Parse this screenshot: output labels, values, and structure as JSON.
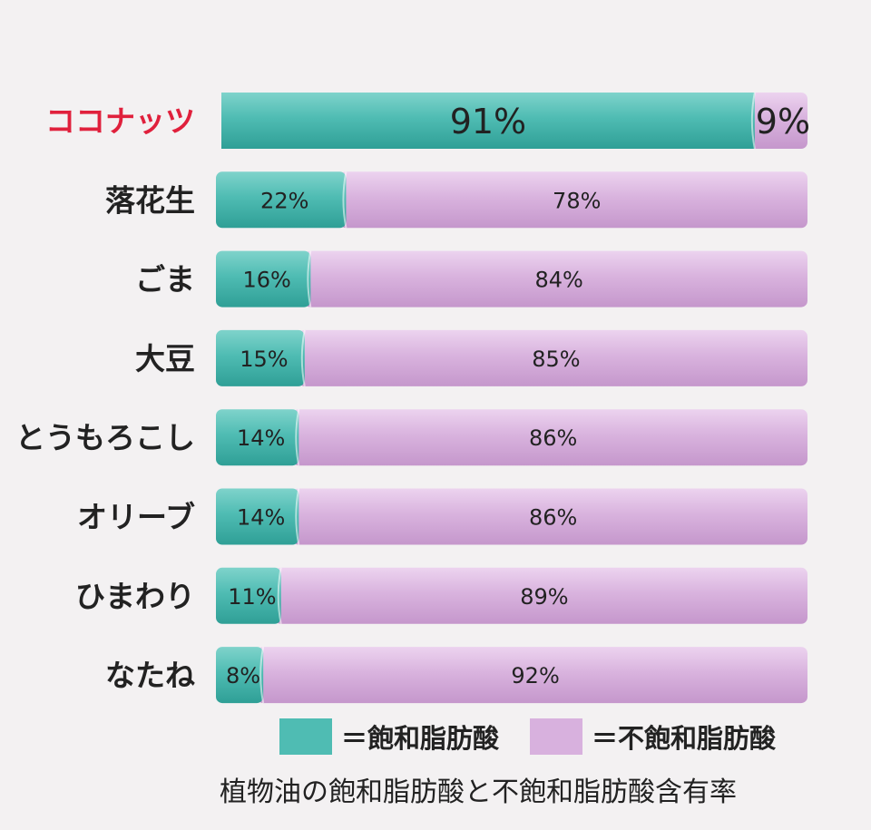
{
  "chart_data": {
    "type": "bar",
    "orientation": "horizontal",
    "stacked": true,
    "percent": true,
    "title": "植物油の飽和脂肪酸と不飽和脂肪酸含有率",
    "categories": [
      "ココナッツ",
      "落花生",
      "ごま",
      "大豆",
      "とうもろこし",
      "オリーブ",
      "ひまわり",
      "なたね"
    ],
    "highlight_category": "ココナッツ",
    "series": [
      {
        "name": "＝飽和脂肪酸",
        "color": "#4fbcb3",
        "values": [
          91,
          22,
          16,
          15,
          14,
          14,
          11,
          8
        ]
      },
      {
        "name": "＝不飽和脂肪酸",
        "color": "#d8b1de",
        "values": [
          9,
          78,
          84,
          85,
          86,
          86,
          89,
          92
        ]
      }
    ],
    "value_suffix": "%",
    "xlim": [
      0,
      100
    ],
    "legend_position": "bottom",
    "grid": false,
    "colors": {
      "highlight_text": "#e0203c",
      "saturated": "#4fbcb3",
      "unsaturated": "#d8b1de"
    }
  }
}
